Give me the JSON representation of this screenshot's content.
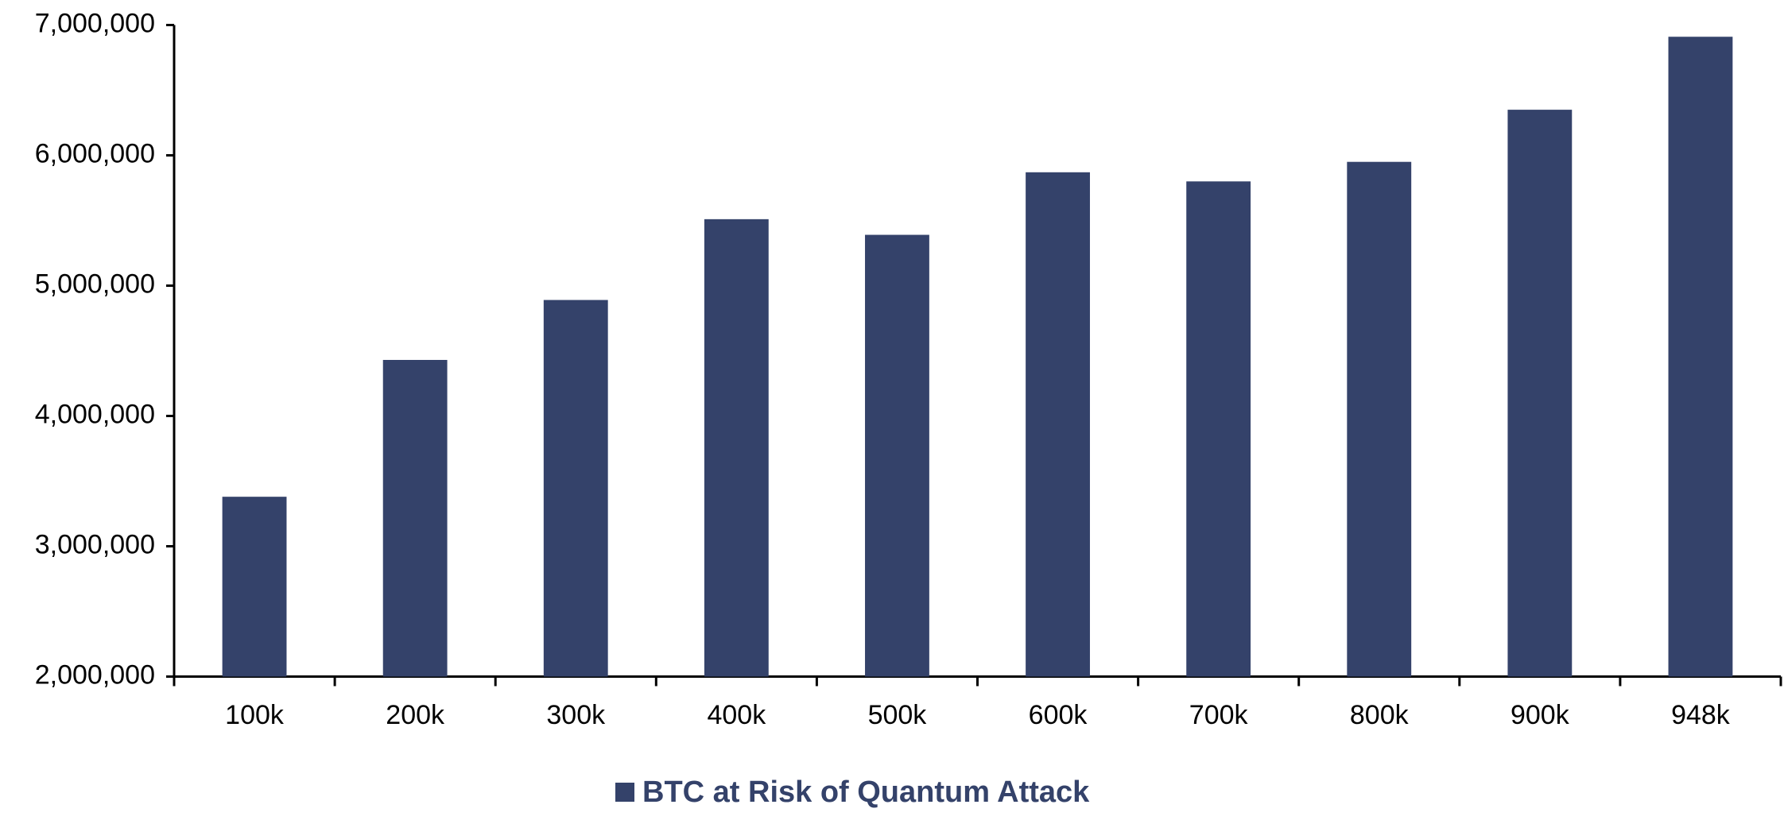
{
  "chart_data": {
    "type": "bar",
    "categories": [
      "100k",
      "200k",
      "300k",
      "400k",
      "500k",
      "600k",
      "700k",
      "800k",
      "900k",
      "948k"
    ],
    "series": [
      {
        "name": "BTC at Risk of Quantum Attack",
        "color": "#34426a",
        "values": [
          3380000,
          4430000,
          4890000,
          5510000,
          5390000,
          5870000,
          5800000,
          5950000,
          6350000,
          6910000
        ]
      }
    ],
    "ylim": [
      2000000,
      7000000
    ],
    "yticks": [
      {
        "value": 2000000,
        "label": "2,000,000"
      },
      {
        "value": 3000000,
        "label": "3,000,000"
      },
      {
        "value": 4000000,
        "label": "4,000,000"
      },
      {
        "value": 5000000,
        "label": "5,000,000"
      },
      {
        "value": 6000000,
        "label": "6,000,000"
      },
      {
        "value": 7000000,
        "label": "7,000,000"
      }
    ],
    "grid": false,
    "legend": "bottom"
  }
}
